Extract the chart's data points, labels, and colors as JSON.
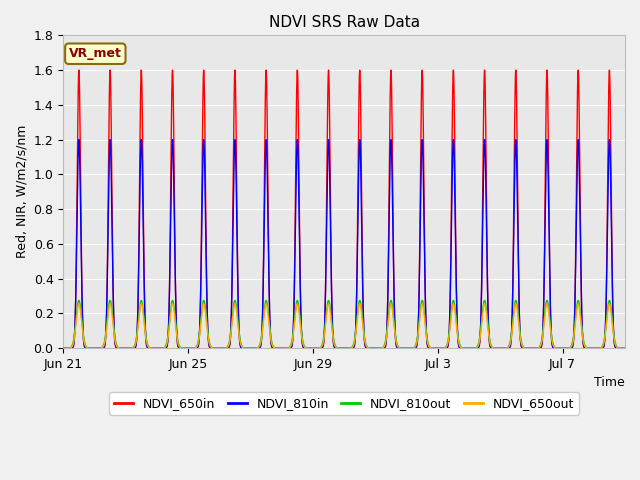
{
  "title": "NDVI SRS Raw Data",
  "xlabel": "Time",
  "ylabel": "Red, NIR, W/m2/s/nm",
  "ylim": [
    0.0,
    1.8
  ],
  "yticks": [
    0.0,
    0.2,
    0.4,
    0.6,
    0.8,
    1.0,
    1.2,
    1.4,
    1.6,
    1.8
  ],
  "num_days": 18,
  "points_per_day": 500,
  "series": [
    {
      "name": "NDVI_650in",
      "color": "#ff0000",
      "peak": 1.6,
      "sigma": 0.055,
      "linewidth": 1.0
    },
    {
      "name": "NDVI_810in",
      "color": "#0000ff",
      "peak": 1.2,
      "sigma": 0.06,
      "linewidth": 1.0
    },
    {
      "name": "NDVI_810out",
      "color": "#00cc00",
      "peak": 0.275,
      "sigma": 0.09,
      "linewidth": 1.0
    },
    {
      "name": "NDVI_650out",
      "color": "#ffaa00",
      "peak": 0.255,
      "sigma": 0.085,
      "linewidth": 1.0
    }
  ],
  "xtick_days": [
    0,
    4,
    8,
    12,
    16
  ],
  "xtick_labels": [
    "Jun 21",
    "Jun 25",
    "Jun 29",
    "Jul 3",
    "Jul 7"
  ],
  "annotation_text": "VR_met",
  "bg_color": "#e8e8e8",
  "fig_facecolor": "#f0f0f0",
  "grid_color": "#ffffff",
  "legend_names": [
    "NDVI_650in",
    "NDVI_810in",
    "NDVI_810out",
    "NDVI_650out"
  ],
  "legend_colors": [
    "#ff0000",
    "#0000ff",
    "#00cc00",
    "#ffaa00"
  ],
  "title_fontsize": 11,
  "axis_label_fontsize": 9,
  "tick_fontsize": 9,
  "legend_fontsize": 9,
  "figsize": [
    6.4,
    4.8
  ],
  "dpi": 100
}
